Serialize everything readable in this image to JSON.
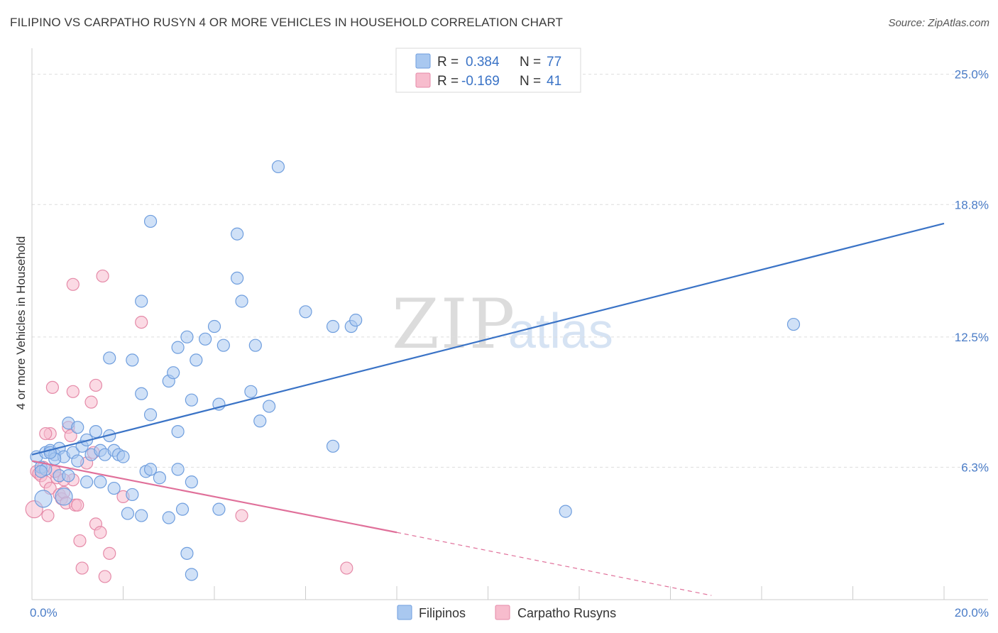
{
  "header": {
    "title": "FILIPINO VS CARPATHO RUSYN 4 OR MORE VEHICLES IN HOUSEHOLD CORRELATION CHART",
    "source": "Source: ZipAtlas.com"
  },
  "watermark": {
    "zip": "ZIP",
    "atlas": "atlas"
  },
  "legend": {
    "rows": [
      {
        "r_label": "R = ",
        "r_value": "0.384",
        "n_label": "N = ",
        "n_value": "77",
        "color": "#a9c8f0",
        "stroke": "#6f9ede"
      },
      {
        "r_label": "R = ",
        "r_value": "-0.169",
        "n_label": "N = ",
        "n_value": "41",
        "color": "#f7bccd",
        "stroke": "#e58aa8"
      }
    ]
  },
  "bottom_legend": [
    {
      "label": "Filipinos",
      "color": "#a9c8f0",
      "stroke": "#6f9ede"
    },
    {
      "label": "Carpatho Rusyns",
      "color": "#f7bccd",
      "stroke": "#e58aa8"
    }
  ],
  "chart_data": {
    "type": "scatter",
    "title": "FILIPINO VS CARPATHO RUSYN 4 OR MORE VEHICLES IN HOUSEHOLD CORRELATION CHART",
    "xlabel": "",
    "ylabel": "4 or more Vehicles in Household",
    "xlim": [
      0,
      20
    ],
    "ylim": [
      0,
      25.9
    ],
    "x_tick_labels": [
      {
        "value": 0,
        "label": "0.0%"
      },
      {
        "value": 20,
        "label": "20.0%"
      }
    ],
    "y_tick_labels": [
      {
        "value": 6.3,
        "label": "6.3%"
      },
      {
        "value": 12.5,
        "label": "12.5%"
      },
      {
        "value": 18.8,
        "label": "18.8%"
      },
      {
        "value": 25.0,
        "label": "25.0%"
      }
    ],
    "series": [
      {
        "name": "Filipinos",
        "color": "#a9c8f0",
        "stroke": "#6f9ede",
        "trend": {
          "x": [
            0,
            20
          ],
          "y": [
            6.9,
            17.9
          ],
          "color": "#3a73c6"
        },
        "points": [
          [
            0.1,
            6.8
          ],
          [
            0.2,
            6.3
          ],
          [
            0.3,
            7.0
          ],
          [
            0.4,
            7.1
          ],
          [
            0.5,
            6.9
          ],
          [
            0.6,
            7.2
          ],
          [
            0.7,
            6.8
          ],
          [
            0.8,
            8.4
          ],
          [
            0.9,
            7.0
          ],
          [
            1.0,
            8.2
          ],
          [
            1.1,
            7.3
          ],
          [
            1.2,
            7.6
          ],
          [
            1.3,
            6.9
          ],
          [
            1.4,
            8.0
          ],
          [
            1.5,
            7.1
          ],
          [
            1.6,
            6.9
          ],
          [
            1.7,
            7.8
          ],
          [
            1.8,
            7.1
          ],
          [
            1.9,
            6.9
          ],
          [
            2.0,
            6.8
          ],
          [
            0.3,
            6.2
          ],
          [
            0.5,
            6.7
          ],
          [
            0.6,
            5.9
          ],
          [
            0.8,
            5.9
          ],
          [
            1.0,
            6.6
          ],
          [
            1.2,
            5.6
          ],
          [
            1.5,
            5.6
          ],
          [
            1.8,
            5.3
          ],
          [
            2.2,
            5.0
          ],
          [
            2.5,
            6.1
          ],
          [
            2.6,
            6.2
          ],
          [
            2.8,
            5.8
          ],
          [
            3.2,
            6.2
          ],
          [
            3.5,
            5.6
          ],
          [
            2.1,
            4.1
          ],
          [
            2.4,
            4.0
          ],
          [
            3.0,
            3.9
          ],
          [
            3.3,
            4.3
          ],
          [
            3.4,
            2.2
          ],
          [
            3.5,
            1.2
          ],
          [
            4.1,
            4.3
          ],
          [
            11.7,
            4.2
          ],
          [
            2.6,
            8.8
          ],
          [
            2.4,
            9.8
          ],
          [
            3.0,
            10.4
          ],
          [
            3.1,
            10.8
          ],
          [
            3.2,
            12.0
          ],
          [
            3.4,
            12.5
          ],
          [
            3.5,
            9.5
          ],
          [
            3.6,
            11.4
          ],
          [
            3.8,
            12.4
          ],
          [
            4.0,
            13.0
          ],
          [
            4.2,
            12.1
          ],
          [
            4.1,
            9.3
          ],
          [
            4.5,
            15.3
          ],
          [
            4.5,
            17.4
          ],
          [
            4.6,
            14.2
          ],
          [
            4.9,
            12.1
          ],
          [
            4.8,
            9.9
          ],
          [
            5.0,
            8.5
          ],
          [
            5.2,
            9.2
          ],
          [
            5.4,
            20.6
          ],
          [
            6.0,
            13.7
          ],
          [
            6.6,
            13.0
          ],
          [
            6.6,
            7.3
          ],
          [
            7.0,
            13.0
          ],
          [
            7.1,
            13.3
          ],
          [
            2.2,
            11.4
          ],
          [
            1.7,
            11.5
          ],
          [
            2.4,
            14.2
          ],
          [
            2.6,
            18.0
          ],
          [
            3.2,
            8.0
          ],
          [
            16.7,
            13.1
          ],
          [
            0.4,
            7.0
          ],
          [
            0.2,
            6.1
          ],
          [
            0.7,
            4.9
          ],
          [
            0.25,
            4.8
          ]
        ]
      },
      {
        "name": "Carpatho Rusyns",
        "color": "#f7bccd",
        "stroke": "#e58aa8",
        "trend": {
          "x": [
            0,
            8
          ],
          "y": [
            6.6,
            3.2
          ],
          "color": "#e0709a",
          "dash_to": {
            "x": 14.9,
            "y": 0.2
          }
        },
        "points": [
          [
            0.05,
            4.3
          ],
          [
            0.1,
            6.1
          ],
          [
            0.15,
            6.0
          ],
          [
            0.2,
            5.9
          ],
          [
            0.25,
            6.3
          ],
          [
            0.3,
            5.6
          ],
          [
            0.35,
            4.0
          ],
          [
            0.4,
            5.3
          ],
          [
            0.5,
            6.1
          ],
          [
            0.55,
            5.8
          ],
          [
            0.6,
            5.0
          ],
          [
            0.65,
            4.8
          ],
          [
            0.7,
            5.1
          ],
          [
            0.75,
            4.6
          ],
          [
            0.8,
            8.2
          ],
          [
            0.85,
            7.8
          ],
          [
            0.9,
            5.7
          ],
          [
            0.95,
            4.5
          ],
          [
            1.0,
            4.5
          ],
          [
            1.05,
            2.8
          ],
          [
            1.1,
            1.5
          ],
          [
            1.2,
            6.5
          ],
          [
            1.3,
            9.4
          ],
          [
            1.35,
            7.0
          ],
          [
            1.4,
            10.2
          ],
          [
            1.4,
            3.6
          ],
          [
            1.5,
            3.2
          ],
          [
            1.55,
            15.4
          ],
          [
            1.6,
            1.1
          ],
          [
            1.7,
            2.2
          ],
          [
            2.0,
            4.9
          ],
          [
            2.4,
            13.2
          ],
          [
            0.9,
            15.0
          ],
          [
            0.4,
            7.9
          ],
          [
            0.45,
            10.1
          ],
          [
            0.9,
            9.9
          ],
          [
            0.5,
            6.1
          ],
          [
            4.6,
            4.0
          ],
          [
            6.9,
            1.5
          ],
          [
            0.7,
            5.7
          ],
          [
            0.3,
            7.9
          ]
        ]
      }
    ]
  }
}
